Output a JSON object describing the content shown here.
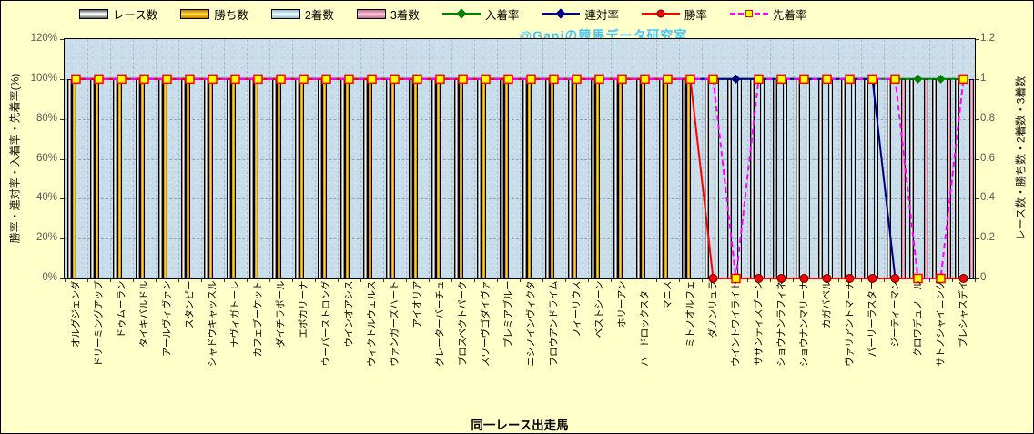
{
  "watermark": "@Ganiの競馬データ研究室",
  "axes": {
    "left_title": "勝率・連対率・入着率・先着率(%)",
    "right_title": "レース数・勝ち数・2着数・3着数",
    "x_title": "同一レース出走馬",
    "left_ticks": [
      "120%",
      "100%",
      "80%",
      "60%",
      "40%",
      "20%",
      "0%"
    ],
    "right_ticks": [
      "1.2",
      "1",
      "0.8",
      "0.6",
      "0.4",
      "0.2",
      "0"
    ]
  },
  "legend": [
    {
      "key": "race",
      "label": "レース数",
      "type": "bar",
      "color": "#FFFFFF"
    },
    {
      "key": "win",
      "label": "勝ち数",
      "type": "bar",
      "color": "#FFC414"
    },
    {
      "key": "second",
      "label": "2着数",
      "type": "bar",
      "color": "#CFF0F8"
    },
    {
      "key": "third",
      "label": "3着数",
      "type": "bar",
      "color": "#F6AFC8"
    },
    {
      "key": "finish",
      "label": "入着率",
      "type": "line",
      "color": "#008000",
      "marker": "diamond",
      "dash": false
    },
    {
      "key": "quinella",
      "label": "連対率",
      "type": "line",
      "color": "#000080",
      "marker": "diamond",
      "dash": false
    },
    {
      "key": "winrate",
      "label": "勝率",
      "type": "line",
      "color": "#FF0000",
      "marker": "circle",
      "dash": false
    },
    {
      "key": "first",
      "label": "先着率",
      "type": "line",
      "color": "#FF00FF",
      "marker": "square",
      "dash": true
    }
  ],
  "chart_data": {
    "type": "bar",
    "subtype": "clustered bars with overlaid percentage lines (dual axis)",
    "title": "",
    "xlabel": "同一レース出走馬",
    "ylabel_left": "勝率・連対率・入着率・先着率(%)",
    "ylabel_right": "レース数・勝ち数・2着数・3着数",
    "ylim_left": [
      0,
      120
    ],
    "ylim_right": [
      0,
      1.2
    ],
    "grid": true,
    "legend_position": "top",
    "categories": [
      "オルグジェンダ",
      "ドリーミングアップ",
      "ドゥムーラン",
      "タイキバルドル",
      "アールヴィヴァン",
      "スタンピー",
      "シャドウキャッスル",
      "ナヴィガトーレ",
      "カフェブーケット",
      "ダイチラポール",
      "エポカリーナ",
      "ウーバーストロング",
      "ウインオアシス",
      "ウィクトルウェルス",
      "ヴァンガーズハート",
      "アイオリア",
      "グレーターバーチュ",
      "プロスペクトパーク",
      "スワーヴゴダイヴァ",
      "プレミアブルー",
      "ニシノインヴィクタ",
      "フロウアンドライム",
      "フィーリウス",
      "ベストシーン",
      "ホリーアン",
      "ハードロックスター",
      "マニス",
      "ミトノオルフェ",
      "ダノンリュラ",
      "ウイントワイライト",
      "サザンティスプーン",
      "ショウナンラフィネ",
      "ショウナンマリーナ",
      "カガバベル",
      "ヴァリアントマーチ",
      "パーリーラスター",
      "ジーティーマン",
      "クロワデュノール",
      "サトノシャイニング",
      "プレシャスデイ"
    ],
    "bar_series": [
      {
        "key": "race",
        "name": "レース数",
        "axis": "right",
        "color": "#FFFFFF",
        "values": [
          1,
          1,
          1,
          1,
          1,
          1,
          1,
          1,
          1,
          1,
          1,
          1,
          1,
          1,
          1,
          1,
          1,
          1,
          1,
          1,
          1,
          1,
          1,
          1,
          1,
          1,
          1,
          1,
          1,
          1,
          1,
          1,
          1,
          1,
          1,
          1,
          1,
          1,
          1,
          1
        ]
      },
      {
        "key": "win",
        "name": "勝ち数",
        "axis": "right",
        "color": "#FFC414",
        "values": [
          1,
          1,
          1,
          1,
          1,
          1,
          1,
          1,
          1,
          1,
          1,
          1,
          1,
          1,
          1,
          1,
          1,
          1,
          1,
          1,
          1,
          1,
          1,
          1,
          1,
          1,
          1,
          1,
          0,
          0,
          0,
          0,
          0,
          0,
          0,
          0,
          0,
          0,
          0,
          0
        ]
      },
      {
        "key": "second",
        "name": "2着数",
        "axis": "right",
        "color": "#CFF0F8",
        "values": [
          0,
          0,
          0,
          0,
          0,
          0,
          0,
          0,
          0,
          0,
          0,
          0,
          0,
          0,
          0,
          0,
          0,
          0,
          0,
          0,
          0,
          0,
          0,
          0,
          0,
          0,
          0,
          0,
          1,
          1,
          1,
          1,
          1,
          1,
          1,
          1,
          0,
          0,
          0,
          0
        ]
      },
      {
        "key": "third",
        "name": "3着数",
        "axis": "right",
        "color": "#F6AFC8",
        "values": [
          0,
          0,
          0,
          0,
          0,
          0,
          0,
          0,
          0,
          0,
          0,
          0,
          0,
          0,
          0,
          0,
          0,
          0,
          0,
          0,
          0,
          0,
          0,
          0,
          0,
          0,
          0,
          0,
          0,
          0,
          0,
          0,
          0,
          0,
          0,
          0,
          1,
          1,
          1,
          1
        ]
      }
    ],
    "line_series": [
      {
        "key": "finish",
        "name": "入着率",
        "axis": "left",
        "color": "#008000",
        "marker": "diamond",
        "dash": false,
        "values": [
          100,
          100,
          100,
          100,
          100,
          100,
          100,
          100,
          100,
          100,
          100,
          100,
          100,
          100,
          100,
          100,
          100,
          100,
          100,
          100,
          100,
          100,
          100,
          100,
          100,
          100,
          100,
          100,
          100,
          100,
          100,
          100,
          100,
          100,
          100,
          100,
          100,
          100,
          100,
          100
        ]
      },
      {
        "key": "quinella",
        "name": "連対率",
        "axis": "left",
        "color": "#000080",
        "marker": "diamond",
        "dash": false,
        "values": [
          100,
          100,
          100,
          100,
          100,
          100,
          100,
          100,
          100,
          100,
          100,
          100,
          100,
          100,
          100,
          100,
          100,
          100,
          100,
          100,
          100,
          100,
          100,
          100,
          100,
          100,
          100,
          100,
          100,
          100,
          100,
          100,
          100,
          100,
          100,
          100,
          0,
          0,
          0,
          0
        ]
      },
      {
        "key": "winrate",
        "name": "勝率",
        "axis": "left",
        "color": "#FF0000",
        "marker": "circle",
        "dash": false,
        "values": [
          100,
          100,
          100,
          100,
          100,
          100,
          100,
          100,
          100,
          100,
          100,
          100,
          100,
          100,
          100,
          100,
          100,
          100,
          100,
          100,
          100,
          100,
          100,
          100,
          100,
          100,
          100,
          100,
          0,
          0,
          0,
          0,
          0,
          0,
          0,
          0,
          0,
          0,
          0,
          0
        ]
      },
      {
        "key": "first",
        "name": "先着率",
        "axis": "left",
        "color": "#FF00FF",
        "marker": "square",
        "dash": true,
        "values": [
          100,
          100,
          100,
          100,
          100,
          100,
          100,
          100,
          100,
          100,
          100,
          100,
          100,
          100,
          100,
          100,
          100,
          100,
          100,
          100,
          100,
          100,
          100,
          100,
          100,
          100,
          100,
          100,
          100,
          0,
          100,
          100,
          100,
          100,
          100,
          100,
          100,
          0,
          0,
          100
        ]
      }
    ]
  }
}
